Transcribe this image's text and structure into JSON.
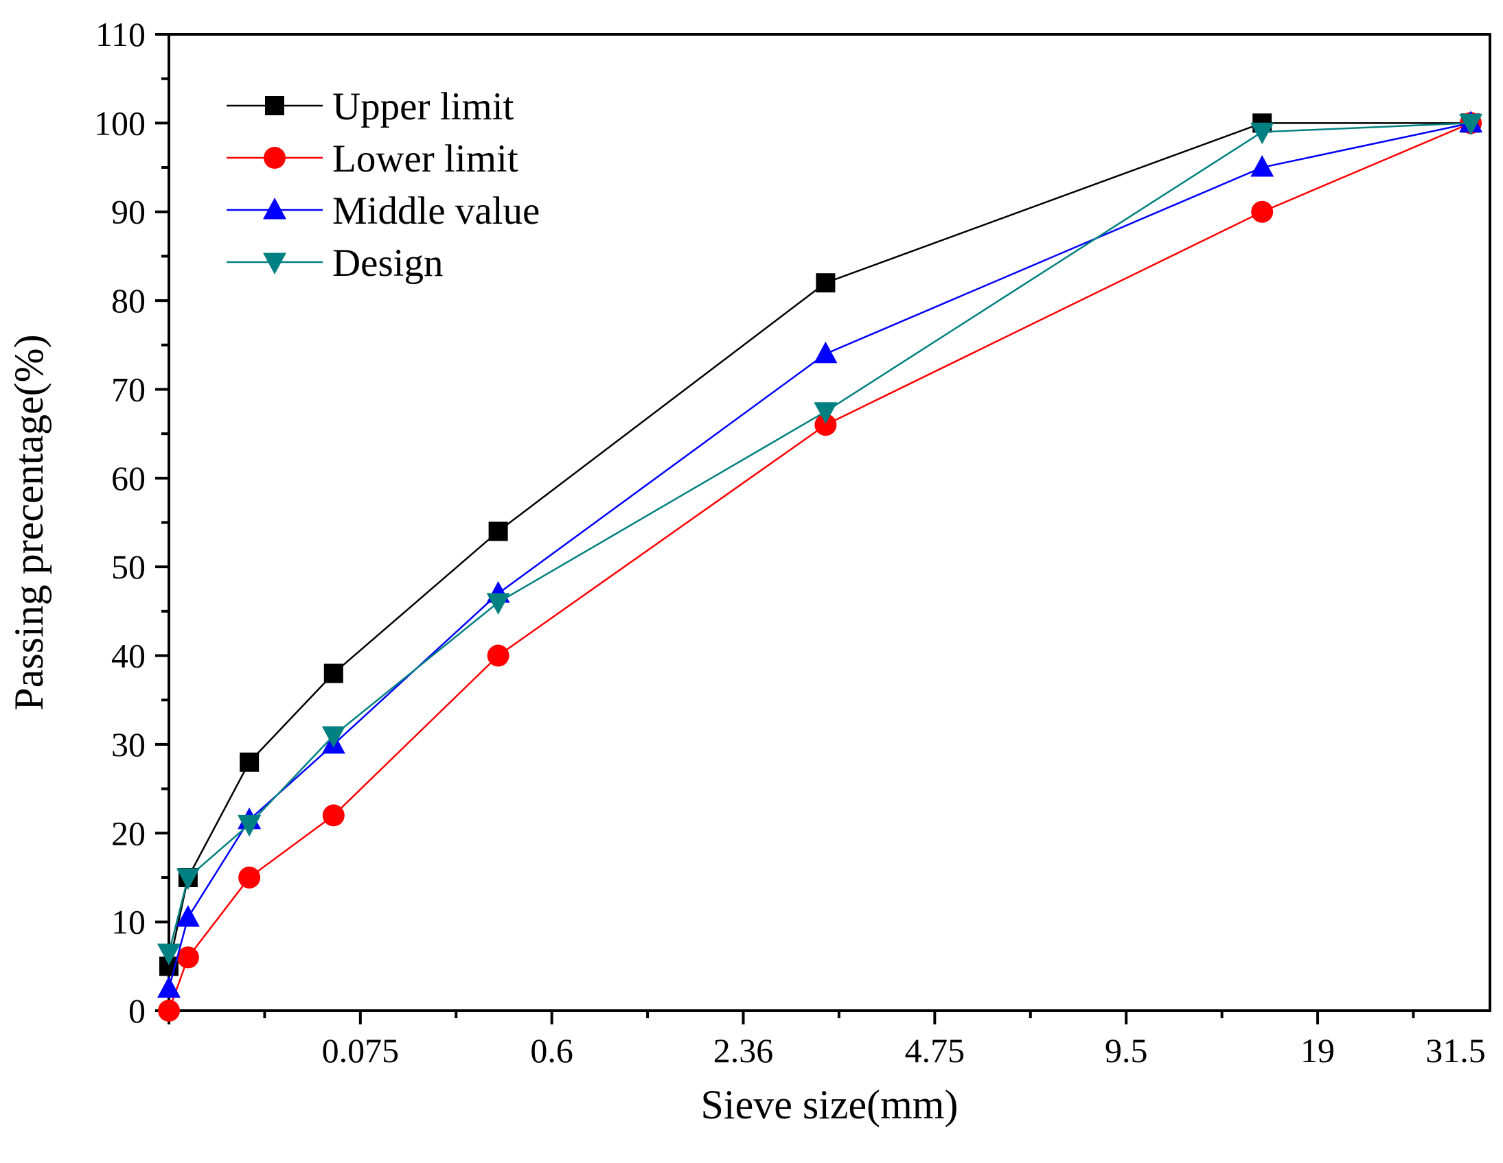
{
  "chart_data": {
    "type": "line",
    "title": "",
    "xlabel": "Sieve size(mm)",
    "ylabel": "Passing precentage(%)",
    "ylim": [
      0,
      110
    ],
    "yticks": [
      0,
      10,
      20,
      30,
      40,
      50,
      60,
      70,
      80,
      90,
      100,
      110
    ],
    "xlim": [
      0,
      6.9
    ],
    "xtick_labels": [
      {
        "pos": 1,
        "label": "0.075"
      },
      {
        "pos": 2,
        "label": "0.6"
      },
      {
        "pos": 3,
        "label": "2.36"
      },
      {
        "pos": 4,
        "label": "4.75"
      },
      {
        "pos": 5,
        "label": "9.5"
      },
      {
        "pos": 6,
        "label": "19"
      },
      {
        "pos": 7,
        "label": "31.5"
      }
    ],
    "legend_position": "top-left",
    "x": [
      0.0,
      0.1,
      0.42,
      0.86,
      1.72,
      3.43,
      5.71,
      6.8
    ],
    "series": [
      {
        "name": "Upper limit",
        "color": "#000000",
        "marker": "square",
        "values": [
          5,
          15,
          28,
          38,
          54,
          82,
          100,
          100
        ]
      },
      {
        "name": "Lower limit",
        "color": "#ff0000",
        "marker": "circle",
        "values": [
          0,
          6,
          15,
          22,
          40,
          66,
          90,
          100
        ]
      },
      {
        "name": "Middle value",
        "color": "#0000ff",
        "marker": "triangle-up",
        "values": [
          2.5,
          10.5,
          21.5,
          30,
          47,
          74,
          95,
          100
        ]
      },
      {
        "name": "Design",
        "color": "#008080",
        "marker": "triangle-down",
        "values": [
          6.5,
          15,
          21,
          31,
          46,
          67.5,
          99,
          100
        ]
      }
    ]
  }
}
